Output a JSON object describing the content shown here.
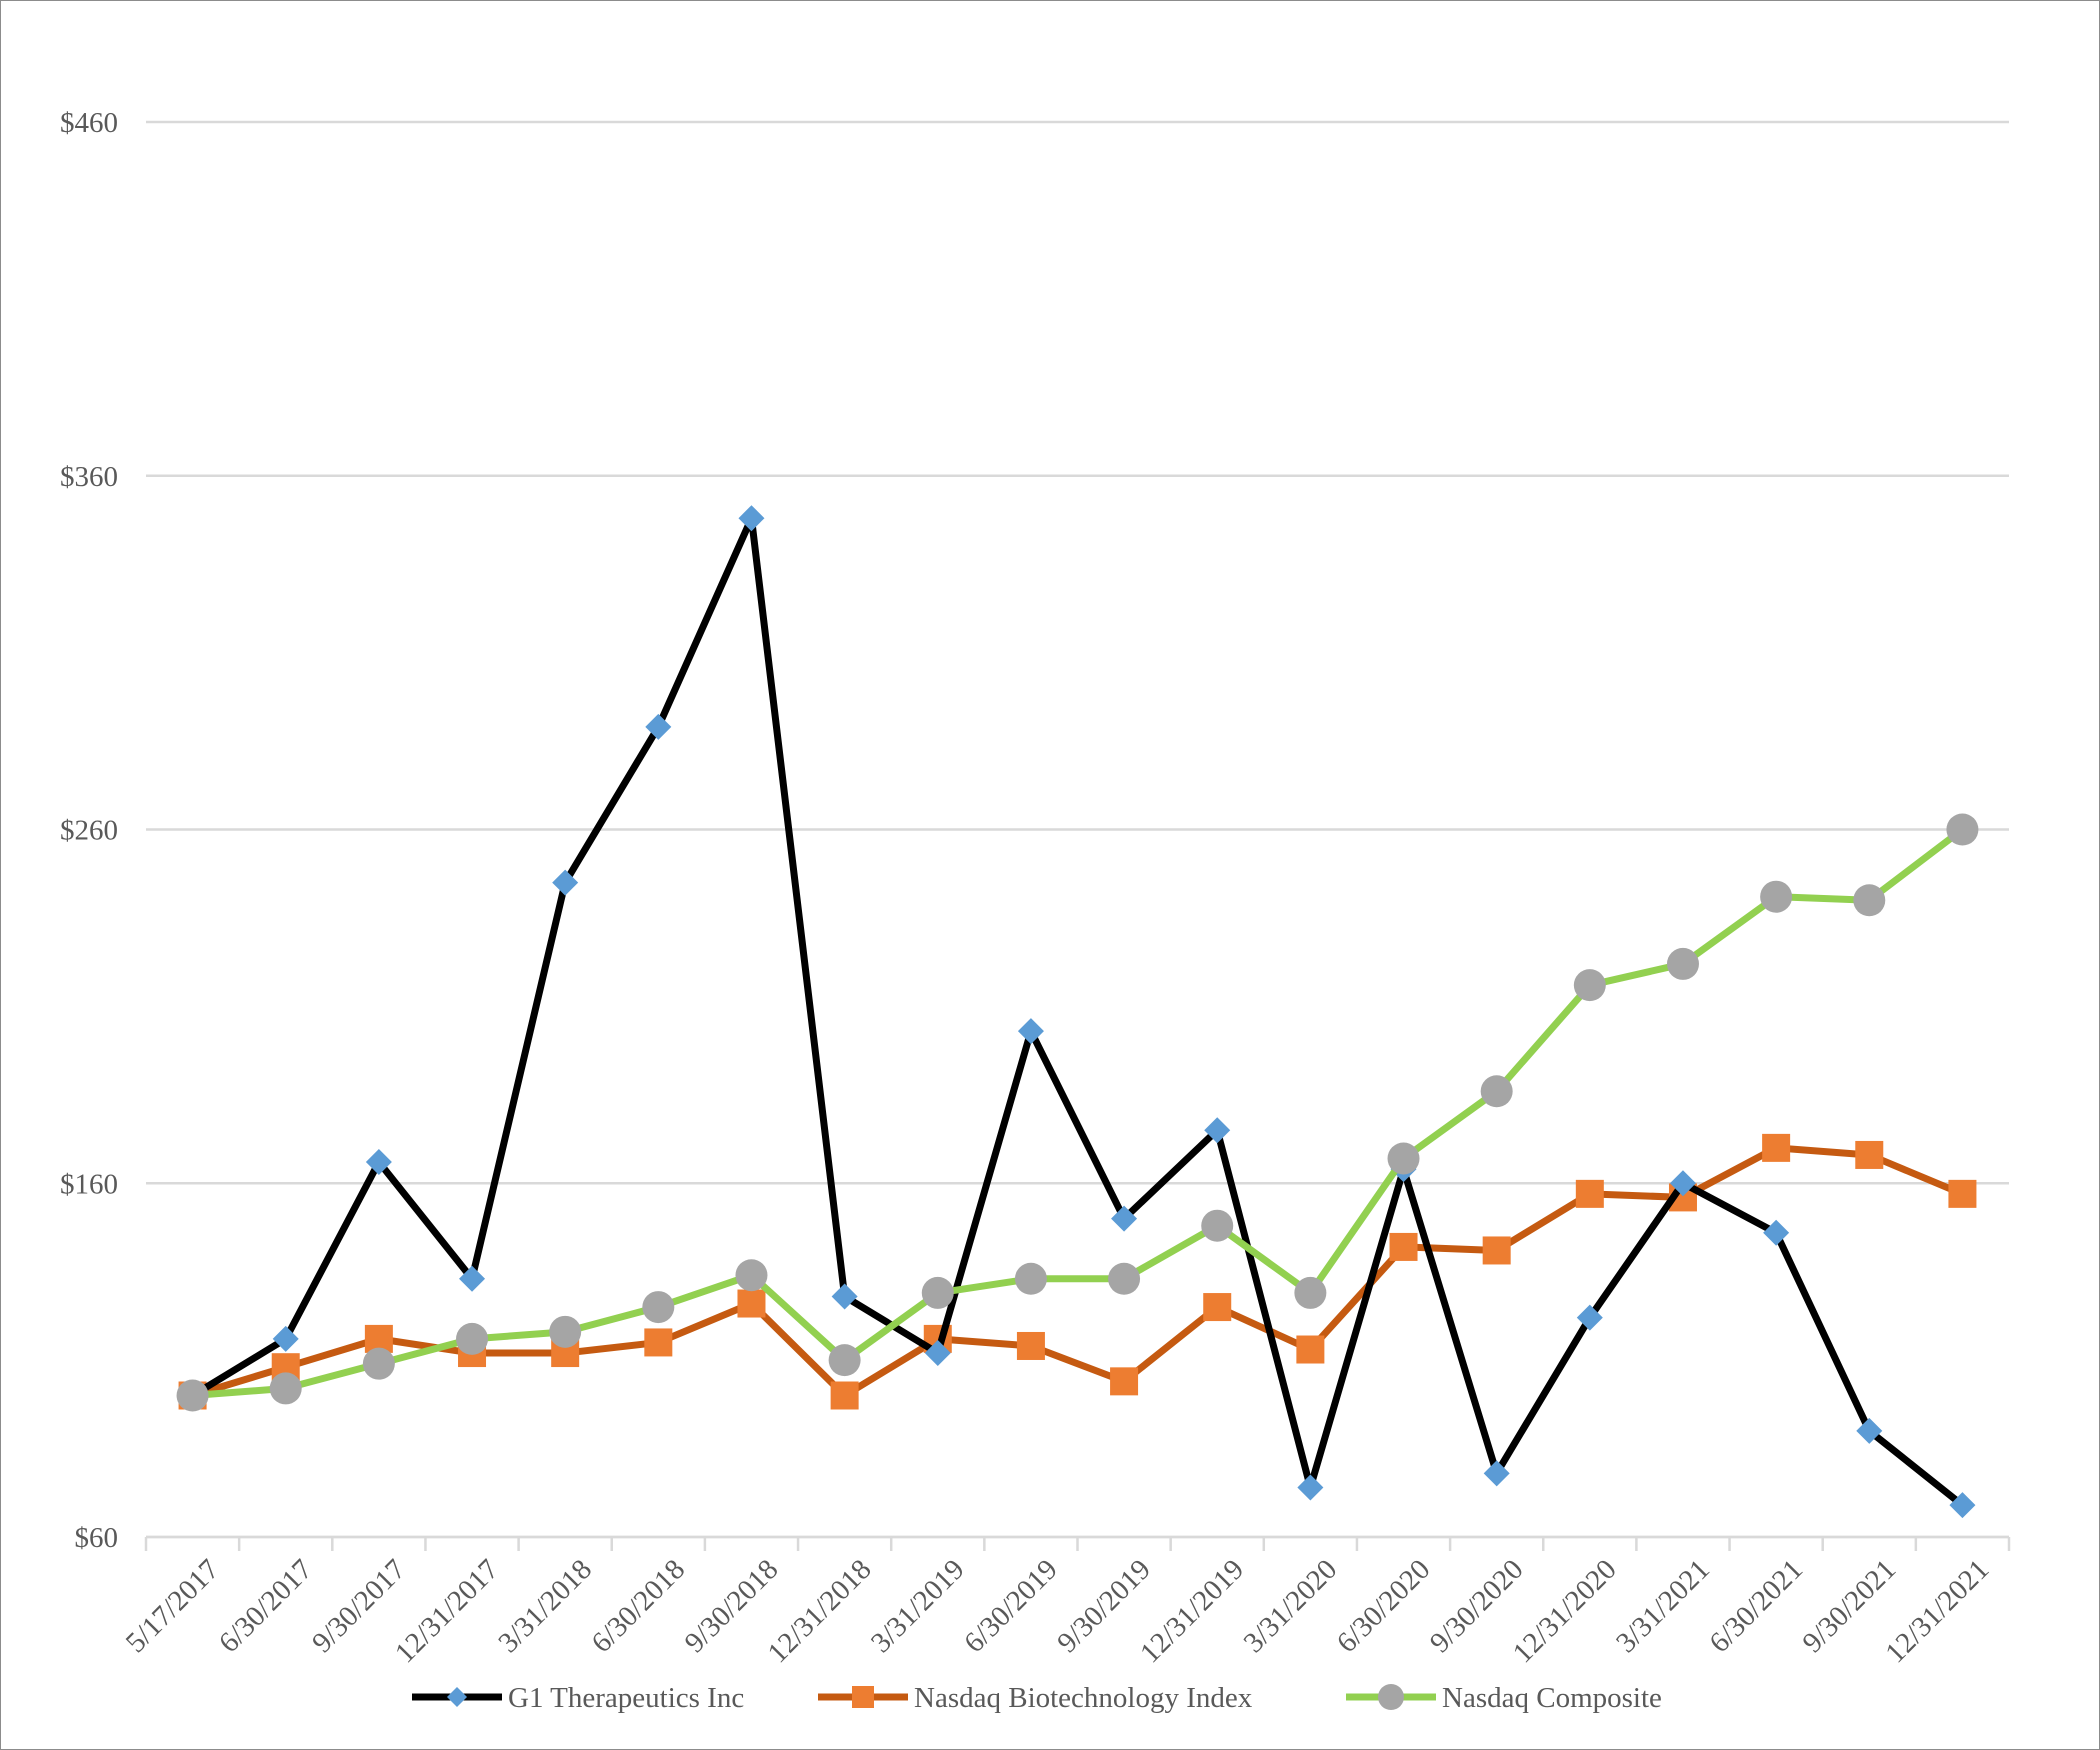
{
  "chart_data": {
    "type": "line",
    "title": "",
    "xlabel": "",
    "ylabel": "",
    "ylim": [
      60,
      460
    ],
    "yticks": [
      60,
      160,
      260,
      360,
      460
    ],
    "ytick_labels": [
      "$60",
      "$160",
      "$260",
      "$360",
      "$460"
    ],
    "categories": [
      "5/17/2017",
      "6/30/2017",
      "9/30/2017",
      "12/31/2017",
      "3/31/2018",
      "6/30/2018",
      "9/30/2018",
      "12/31/2018",
      "3/31/2019",
      "6/30/2019",
      "9/30/2019",
      "12/31/2019",
      "3/31/2020",
      "6/30/2020",
      "9/30/2020",
      "12/31/2020",
      "3/31/2021",
      "6/30/2021",
      "9/30/2021",
      "12/31/2021"
    ],
    "grid": true,
    "legend_position": "bottom",
    "series": [
      {
        "name": "G1 Therapeutics Inc",
        "line_color": "#000000",
        "marker": "diamond",
        "marker_color": "#5b9bd5",
        "values": [
          100,
          116,
          166,
          133,
          245,
          289,
          348,
          128,
          112,
          203,
          150,
          175,
          74,
          164,
          78,
          122,
          160,
          146,
          90,
          69
        ]
      },
      {
        "name": "Nasdaq Biotechnology Index",
        "line_color": "#c55a11",
        "marker": "square",
        "marker_color": "#ed7d31",
        "values": [
          100,
          108,
          116,
          112,
          112,
          115,
          126,
          100,
          116,
          114,
          104,
          125,
          113,
          142,
          141,
          157,
          156,
          170,
          168,
          157
        ]
      },
      {
        "name": "Nasdaq Composite",
        "line_color": "#92d050",
        "marker": "circle",
        "marker_color": "#a5a5a5",
        "values": [
          100,
          102,
          109,
          116,
          118,
          125,
          134,
          110,
          129,
          133,
          133,
          148,
          129,
          167,
          186,
          216,
          222,
          241,
          240,
          260
        ]
      }
    ]
  }
}
